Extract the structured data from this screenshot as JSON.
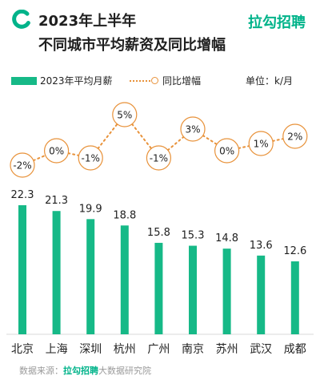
{
  "header": {
    "title_line1": "2023年上半年",
    "title_line2": "不同城市平均薪资及同比增幅",
    "brand": "拉勾招聘"
  },
  "legend": {
    "bar_label": "2023年平均月薪",
    "line_label": "同比增幅"
  },
  "unit": "单位：k/月",
  "footer": {
    "prefix": "数据来源：",
    "brand": "拉勾招聘",
    "suffix": "大数据研究院"
  },
  "colors": {
    "bar": "#16b987",
    "line": "#e8923a",
    "brand": "#00b38a"
  },
  "chart_data": {
    "type": "bar",
    "categories": [
      "北京",
      "上海",
      "深圳",
      "杭州",
      "广州",
      "南京",
      "苏州",
      "武汉",
      "成都"
    ],
    "series": [
      {
        "name": "2023年平均月薪",
        "type": "bar",
        "values": [
          22.3,
          21.3,
          19.9,
          18.8,
          15.8,
          15.3,
          14.8,
          13.6,
          12.6
        ]
      },
      {
        "name": "同比增幅",
        "type": "line",
        "values": [
          -2,
          0,
          -1,
          5,
          -1,
          3,
          0,
          1,
          2
        ],
        "labels": [
          "-2%",
          "0%",
          "-1%",
          "5%",
          "-1%",
          "3%",
          "0%",
          "1%",
          "2%"
        ]
      }
    ],
    "ylim": [
      0,
      24
    ],
    "line_ylim": [
      -2,
      5
    ],
    "grid": false,
    "legend": "top-left"
  }
}
